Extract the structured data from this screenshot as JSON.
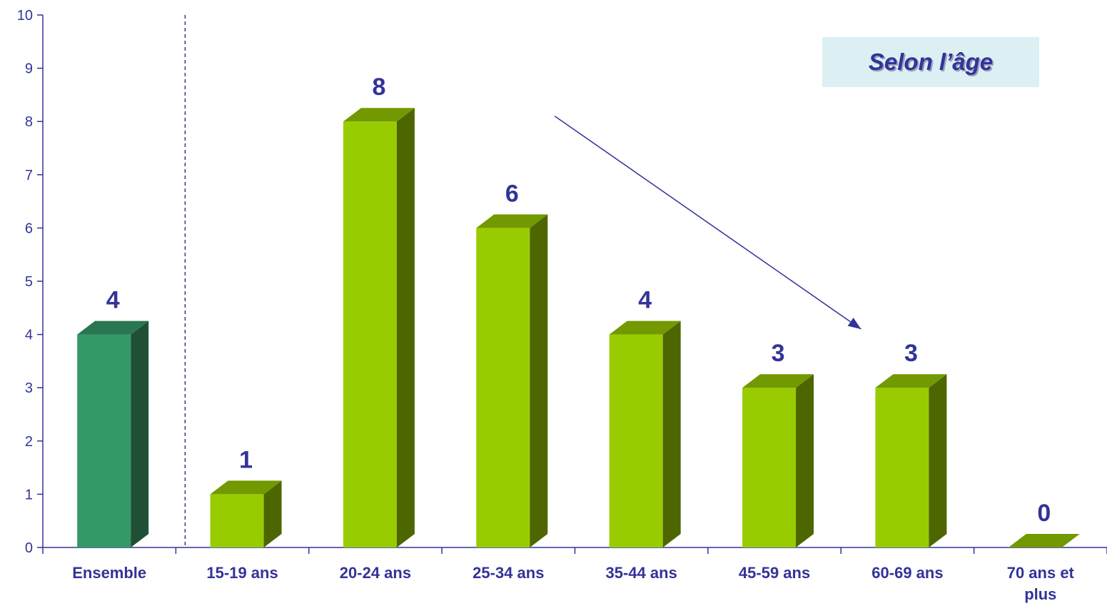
{
  "chart_data": {
    "type": "bar",
    "title": "Selon l’âge",
    "categories": [
      "Ensemble",
      "15-19 ans",
      "20-24 ans",
      "25-34 ans",
      "35-44 ans",
      "45-59 ans",
      "60-69 ans",
      [
        "70 ans et",
        "plus"
      ]
    ],
    "values": [
      4,
      1,
      8,
      6,
      4,
      3,
      3,
      0
    ],
    "data_labels": [
      "4",
      "1",
      "8",
      "6",
      "4",
      "3",
      "3",
      "0"
    ],
    "yticks": [
      "0",
      "1",
      "2",
      "3",
      "4",
      "5",
      "6",
      "7",
      "8",
      "9",
      "10"
    ],
    "ylim": [
      0,
      10
    ],
    "grid": false,
    "bar_style": "3d",
    "highlight_category": "Ensemble",
    "colors": {
      "highlight_front": "#339966",
      "highlight_side": "#1f5036",
      "highlight_top": "#2a7650",
      "bar_front": "#99cc00",
      "bar_side": "#4d6600",
      "bar_top": "#739900",
      "axis": "#333399",
      "trend_arrow": "#333399"
    },
    "annotations": [
      {
        "type": "separator-line",
        "after_category": "Ensemble",
        "style": "dashed"
      },
      {
        "type": "trend-arrow",
        "from_category": "25-34 ans",
        "to_category": "60-69 ans",
        "direction": "down"
      }
    ]
  }
}
